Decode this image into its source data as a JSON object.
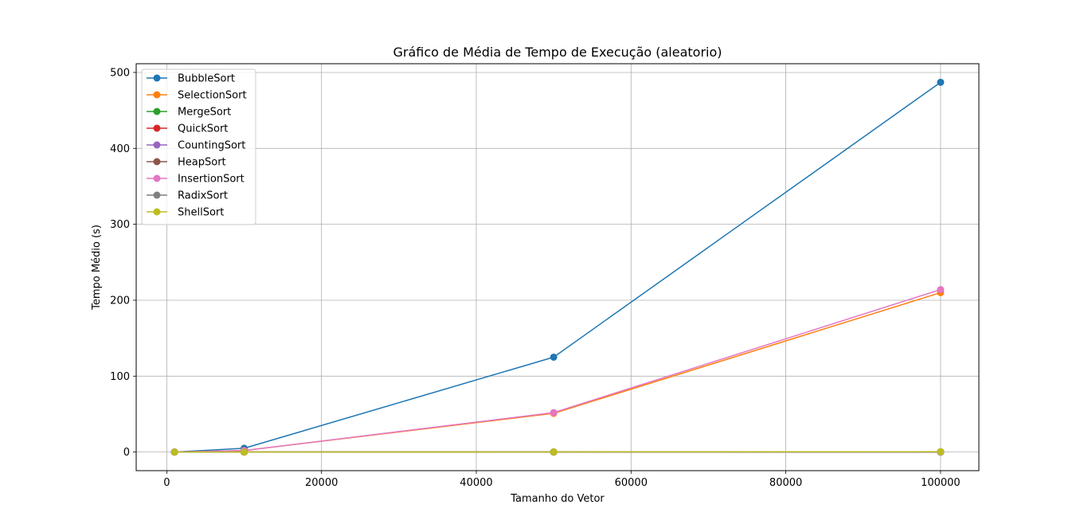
{
  "chart_data": {
    "type": "line",
    "title": "Gráfico de Média de Tempo de Execução (aleatorio)",
    "xlabel": "Tamanho do Vetor",
    "ylabel": "Tempo Médio (s)",
    "x": [
      1000,
      10000,
      50000,
      100000
    ],
    "xlim": [
      -3950,
      104950
    ],
    "ylim": [
      -24.5,
      511.5
    ],
    "xticks": [
      0,
      20000,
      40000,
      60000,
      80000,
      100000
    ],
    "yticks": [
      0,
      100,
      200,
      300,
      400,
      500
    ],
    "xtick_labels": [
      "0",
      "20000",
      "40000",
      "60000",
      "80000",
      "100000"
    ],
    "ytick_labels": [
      "0",
      "100",
      "200",
      "300",
      "400",
      "500"
    ],
    "grid": true,
    "legend_position": "upper-left",
    "marker": "circle",
    "series": [
      {
        "name": "BubbleSort",
        "color": "#1f77b4",
        "values": [
          0.05,
          5.0,
          125.0,
          487.0
        ]
      },
      {
        "name": "SelectionSort",
        "color": "#ff7f0e",
        "values": [
          0.02,
          2.0,
          51.0,
          210.0
        ]
      },
      {
        "name": "MergeSort",
        "color": "#2ca02c",
        "values": [
          0.0,
          0.02,
          0.1,
          0.2
        ]
      },
      {
        "name": "QuickSort",
        "color": "#d62728",
        "values": [
          0.0,
          0.01,
          0.06,
          0.1
        ]
      },
      {
        "name": "CountingSort",
        "color": "#9467bd",
        "values": [
          0.0,
          0.0,
          0.01,
          0.02
        ]
      },
      {
        "name": "HeapSort",
        "color": "#8c564b",
        "values": [
          0.0,
          0.02,
          0.15,
          0.3
        ]
      },
      {
        "name": "InsertionSort",
        "color": "#e377c2",
        "values": [
          0.02,
          2.0,
          52.0,
          214.0
        ]
      },
      {
        "name": "RadixSort",
        "color": "#7f7f7f",
        "values": [
          0.0,
          0.01,
          0.05,
          0.1
        ]
      },
      {
        "name": "ShellSort",
        "color": "#bcbd22",
        "values": [
          0.0,
          0.02,
          0.2,
          0.5
        ]
      }
    ]
  }
}
